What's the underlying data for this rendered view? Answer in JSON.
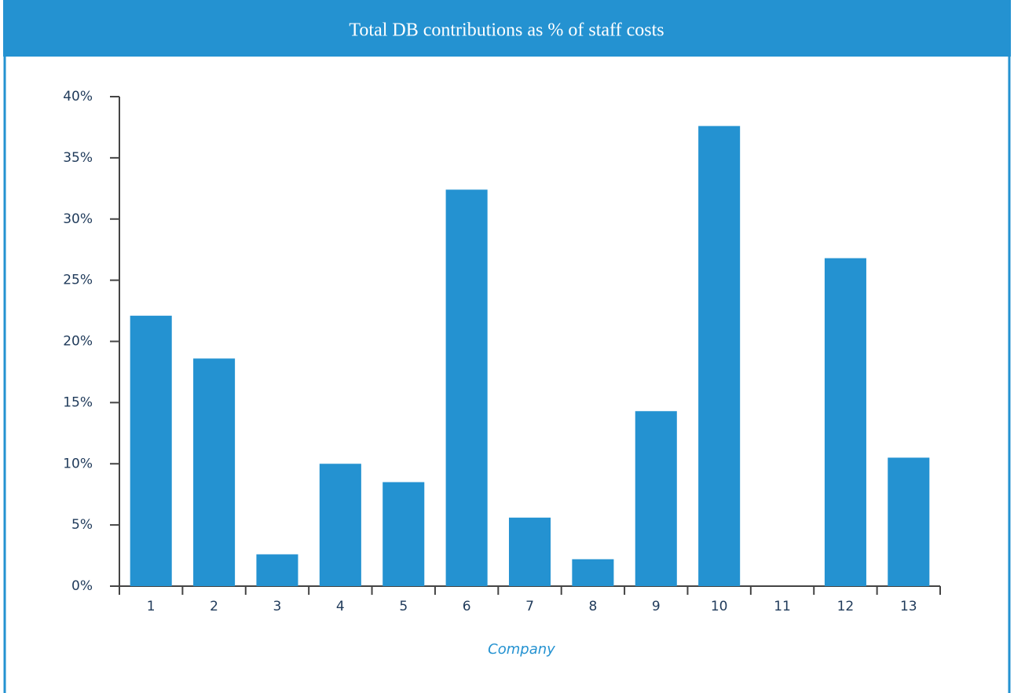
{
  "chart_data": {
    "type": "bar",
    "title": "Total DB contributions as % of staff costs",
    "x_label": "Company",
    "categories": [
      "1",
      "2",
      "3",
      "4",
      "5",
      "6",
      "7",
      "8",
      "9",
      "10",
      "11",
      "12",
      "13"
    ],
    "values": [
      22.1,
      18.6,
      2.6,
      10.0,
      8.5,
      32.4,
      5.6,
      2.2,
      14.3,
      37.6,
      0,
      26.8,
      10.5
    ],
    "color": "#2492d1",
    "ylim": [
      0,
      40
    ],
    "yticks": [
      {
        "value": 0,
        "label": "0%"
      },
      {
        "value": 5,
        "label": "5%"
      },
      {
        "value": 10,
        "label": "10%"
      },
      {
        "value": 15,
        "label": "15%"
      },
      {
        "value": 20,
        "label": "20%"
      },
      {
        "value": 25,
        "label": "25%"
      },
      {
        "value": 30,
        "label": "30%"
      },
      {
        "value": 35,
        "label": "35%"
      },
      {
        "value": 40,
        "label": "40%"
      }
    ],
    "grid": false
  }
}
